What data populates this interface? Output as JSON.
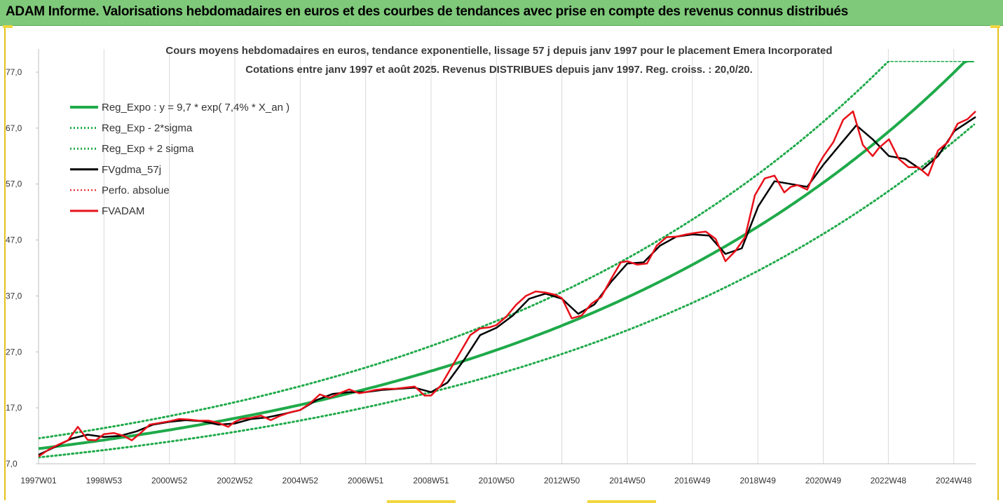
{
  "banner": {
    "title": "ADAM Informe. Valorisations hebdomadaires en euros et des courbes de tendances avec prise en compte des revenus connus distribués"
  },
  "colors": {
    "banner_bg": "#7fc97a",
    "trend": "#1faa4a",
    "smooth": "#000000",
    "price": "#e8101a",
    "frame": "#e6c21a"
  },
  "chart_data": {
    "type": "line",
    "title": "Cours moyens hebdomadaires en euros, tendance exponentielle, lissage 57 j depuis janv 1997 pour le placement Emera Incorporated",
    "subtitle": "Cotations entre janv 1997 et août 2025. Revenus DISTRIBUES depuis janv 1997. Reg. croiss. : 20,0/20.",
    "xlabel": "",
    "ylabel": "",
    "x_tick_labels": [
      "1997W01",
      "1998W53",
      "2000W52",
      "2002W52",
      "2004W52",
      "2006W51",
      "2008W51",
      "2010W50",
      "2012W50",
      "2014W50",
      "2016W49",
      "2018W49",
      "2020W49",
      "2022W48",
      "2024W48"
    ],
    "x_tick_years": [
      1997.0,
      1999.0,
      2001.0,
      2003.0,
      2005.0,
      2007.0,
      2009.0,
      2011.0,
      2013.0,
      2015.0,
      2016.99,
      2018.99,
      2020.99,
      2022.98,
      2024.98
    ],
    "x_range": [
      1997.0,
      2025.65
    ],
    "y_tick_labels": [
      "7,0",
      "17,0",
      "27,0",
      "37,0",
      "47,0",
      "57,0",
      "67,0",
      "77,0"
    ],
    "y_ticks": [
      7,
      17,
      27,
      37,
      47,
      57,
      67,
      77
    ],
    "ylim": [
      7,
      79
    ],
    "grid": "vertical",
    "legend_position": "top-left",
    "trend_model": {
      "a": 9.7,
      "rate": 0.074,
      "sigma_factor_low": 0.84,
      "sigma_factor_high": 1.19
    },
    "legend": [
      {
        "label": "Reg_Expo : y = 9,7 * exp( 7,4% *  X_an )",
        "color": "#1faa4a",
        "style": "solid",
        "width": 4
      },
      {
        "label": "Reg_Exp - 2*sigma",
        "color": "#1faa4a",
        "style": "dotted",
        "width": 3
      },
      {
        "label": "Reg_Exp + 2 sigma",
        "color": "#1faa4a",
        "style": "dotted",
        "width": 3
      },
      {
        "label": "FVgdma_57j",
        "color": "#000000",
        "style": "solid",
        "width": 3
      },
      {
        "label": "Perfo. absolue",
        "color": "#e8101a",
        "style": "dotted",
        "width": 2
      },
      {
        "label": "FVADAM",
        "color": "#e8101a",
        "style": "solid",
        "width": 3
      }
    ],
    "series": [
      {
        "name": "FVADAM",
        "x": [
          1997.0,
          1997.3,
          1997.6,
          1997.9,
          1998.2,
          1998.5,
          1998.75,
          1999.0,
          1999.3,
          1999.6,
          1999.85,
          2000.1,
          2000.4,
          2000.7,
          2001.0,
          2001.3,
          2001.6,
          2001.9,
          2002.2,
          2002.5,
          2002.8,
          2003.0,
          2003.2,
          2003.5,
          2003.8,
          2004.1,
          2004.4,
          2004.7,
          2005.0,
          2005.3,
          2005.6,
          2005.9,
          2006.2,
          2006.5,
          2006.8,
          2007.0,
          2007.3,
          2007.6,
          2007.9,
          2008.2,
          2008.5,
          2008.8,
          2009.0,
          2009.3,
          2009.6,
          2009.9,
          2010.2,
          2010.5,
          2010.8,
          2011.0,
          2011.3,
          2011.6,
          2011.9,
          2012.2,
          2012.5,
          2012.8,
          2013.0,
          2013.3,
          2013.6,
          2013.9,
          2014.2,
          2014.5,
          2014.8,
          2015.0,
          2015.3,
          2015.6,
          2015.9,
          2016.2,
          2016.5,
          2016.8,
          2017.1,
          2017.4,
          2017.7,
          2018.0,
          2018.3,
          2018.6,
          2018.9,
          2019.2,
          2019.5,
          2019.8,
          2020.0,
          2020.2,
          2020.5,
          2020.8,
          2021.0,
          2021.3,
          2021.6,
          2021.9,
          2022.2,
          2022.5,
          2022.7,
          2023.0,
          2023.3,
          2023.6,
          2023.9,
          2024.2,
          2024.5,
          2024.8,
          2025.1,
          2025.4,
          2025.65
        ],
        "y": [
          8.3,
          9.5,
          10.4,
          11.2,
          13.6,
          11.3,
          11.2,
          12.3,
          12.5,
          12.0,
          11.2,
          12.4,
          14.0,
          14.3,
          14.6,
          15.0,
          14.9,
          14.7,
          14.7,
          14.3,
          13.6,
          14.5,
          15.0,
          15.2,
          15.6,
          14.8,
          15.6,
          16.2,
          16.6,
          17.8,
          19.4,
          18.8,
          19.6,
          20.3,
          19.6,
          19.8,
          20.2,
          20.4,
          20.4,
          20.6,
          20.8,
          19.2,
          19.2,
          21.0,
          24.0,
          27.0,
          30.0,
          31.2,
          31.4,
          31.8,
          33.3,
          35.4,
          37.0,
          37.8,
          37.6,
          37.2,
          36.6,
          33.0,
          33.5,
          35.6,
          36.8,
          40.0,
          43.0,
          43.2,
          42.6,
          42.8,
          46.0,
          47.5,
          47.6,
          48.0,
          48.3,
          48.5,
          47.2,
          43.2,
          45.0,
          47.5,
          55.0,
          58.0,
          58.5,
          55.5,
          56.5,
          56.8,
          56.0,
          60.0,
          62.0,
          64.5,
          68.5,
          70.0,
          64.0,
          62.0,
          63.5,
          65.0,
          61.5,
          60.0,
          60.0,
          58.5,
          63.0,
          64.5,
          67.8,
          68.6,
          70.0
        ]
      },
      {
        "name": "FVgdma_57j",
        "x": [
          1997.0,
          1997.5,
          1998.0,
          1998.5,
          1999.0,
          1999.5,
          2000.0,
          2000.5,
          2001.0,
          2001.5,
          2002.0,
          2002.5,
          2003.0,
          2003.5,
          2004.0,
          2004.5,
          2005.0,
          2005.5,
          2006.0,
          2006.5,
          2007.0,
          2007.5,
          2008.0,
          2008.5,
          2009.0,
          2009.5,
          2010.0,
          2010.5,
          2011.0,
          2011.5,
          2012.0,
          2012.5,
          2013.0,
          2013.5,
          2014.0,
          2014.5,
          2015.0,
          2015.5,
          2016.0,
          2016.5,
          2017.0,
          2017.5,
          2018.0,
          2018.5,
          2019.0,
          2019.5,
          2020.0,
          2020.5,
          2021.0,
          2021.5,
          2022.0,
          2022.5,
          2023.0,
          2023.5,
          2024.0,
          2024.5,
          2025.0,
          2025.65
        ],
        "y": [
          8.6,
          10.0,
          11.5,
          12.2,
          11.8,
          12.0,
          12.8,
          14.0,
          14.5,
          14.8,
          14.6,
          14.0,
          14.2,
          15.0,
          15.3,
          15.9,
          16.6,
          18.4,
          19.5,
          19.8,
          19.8,
          20.2,
          20.4,
          20.6,
          19.8,
          21.5,
          25.5,
          30.0,
          31.3,
          33.5,
          36.5,
          37.4,
          36.5,
          33.8,
          35.5,
          39.5,
          42.8,
          43.0,
          46.0,
          47.6,
          48.0,
          47.8,
          44.5,
          45.5,
          53.0,
          57.5,
          57.0,
          56.5,
          60.5,
          64.0,
          67.5,
          65.0,
          62.0,
          61.5,
          59.5,
          62.0,
          66.5,
          69.0
        ]
      }
    ]
  }
}
